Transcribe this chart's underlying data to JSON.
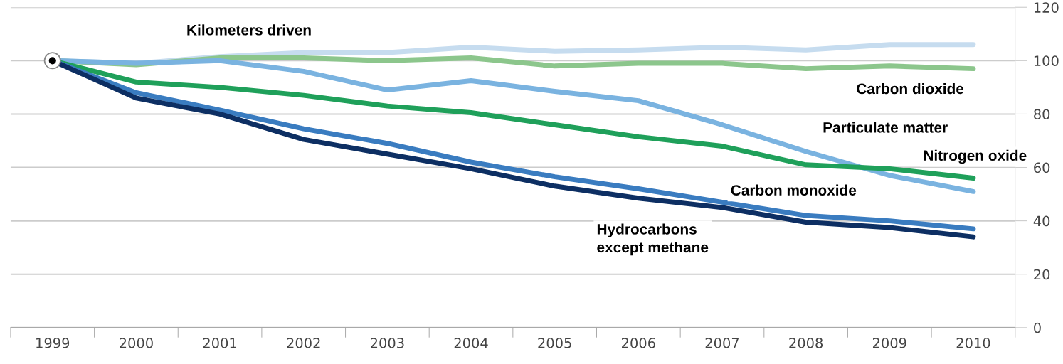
{
  "chart_data": {
    "type": "line",
    "categories": [
      "1999",
      "2000",
      "2001",
      "2002",
      "2003",
      "2004",
      "2005",
      "2006",
      "2007",
      "2008",
      "2009",
      "2010"
    ],
    "series": [
      {
        "name": "Kilometers driven",
        "color": "#c6dcef",
        "values": [
          100,
          99,
          101.5,
          103,
          103,
          105,
          103.5,
          104,
          105,
          104,
          106,
          106
        ]
      },
      {
        "name": "Carbon dioxide",
        "color": "#8cc68c",
        "values": [
          100,
          98.5,
          101,
          101,
          100,
          101,
          98,
          99,
          99,
          97,
          98,
          97
        ]
      },
      {
        "name": "Particulate matter",
        "color": "#7ab3e0",
        "values": [
          100,
          99,
          100,
          96,
          89,
          92.5,
          88.5,
          85,
          76,
          66,
          57,
          51
        ]
      },
      {
        "name": "Nitrogen oxide",
        "color": "#1fa05a",
        "values": [
          100,
          92,
          90,
          87,
          83,
          80.5,
          76,
          71.5,
          68,
          61,
          59.5,
          56
        ]
      },
      {
        "name": "Carbon monoxide",
        "color": "#3a7cc0",
        "values": [
          100,
          88,
          81.5,
          74.5,
          69,
          62,
          56.5,
          52,
          47,
          42,
          40,
          37
        ]
      },
      {
        "name": "Hydrocarbons\nexcept methane",
        "color": "#0d2f63",
        "values": [
          100,
          86,
          80,
          70.5,
          65,
          59.5,
          53,
          48.5,
          45,
          39.5,
          37.5,
          34
        ]
      }
    ],
    "ylim": [
      0,
      120
    ],
    "yticks": [
      0,
      20,
      40,
      60,
      80,
      100,
      120
    ],
    "grid": "y",
    "legend": false,
    "marker": "none",
    "line_style": "solid"
  }
}
